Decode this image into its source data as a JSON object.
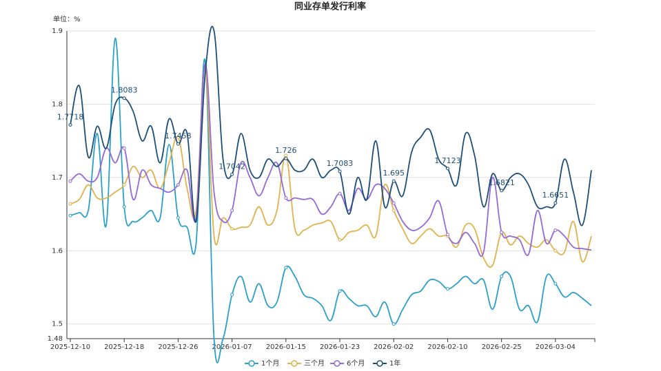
{
  "chart_data": {
    "type": "line",
    "title": "同业存单发行利率",
    "y_axis_label": "单位：%",
    "categories": [
      "2025-12-10",
      null,
      null,
      null,
      null,
      null,
      "2025-12-18",
      null,
      null,
      null,
      null,
      null,
      "2025-12-26",
      null,
      null,
      null,
      null,
      null,
      "2026-01-07",
      null,
      null,
      null,
      null,
      null,
      "2026-01-15",
      null,
      null,
      null,
      null,
      null,
      "2026-01-23",
      null,
      null,
      null,
      null,
      null,
      "2026-02-02",
      null,
      null,
      null,
      null,
      null,
      "2026-02-10",
      null,
      null,
      null,
      null,
      null,
      "2026-02-25",
      null,
      null,
      null,
      null,
      null,
      "2026-03-04",
      null,
      null,
      null,
      null
    ],
    "ylim": [
      1.48,
      1.9
    ],
    "yticks": [
      1.48,
      1.5,
      1.6,
      1.7,
      1.8,
      1.9
    ],
    "grid": true,
    "legend": "bottom",
    "smooth": true,
    "series": [
      {
        "name": "1个月",
        "color": "#2a9fc9",
        "values": [
          1.648,
          1.652,
          1.655,
          1.76,
          1.635,
          1.89,
          1.66,
          1.64,
          1.645,
          1.655,
          1.645,
          1.745,
          1.645,
          1.632,
          1.61,
          1.86,
          1.48,
          1.48,
          1.54,
          1.565,
          1.53,
          1.555,
          1.525,
          1.53,
          1.577,
          1.565,
          1.54,
          1.535,
          1.525,
          1.505,
          1.545,
          1.535,
          1.525,
          1.525,
          1.51,
          1.53,
          1.5,
          1.52,
          1.54,
          1.545,
          1.56,
          1.558,
          1.548,
          1.555,
          1.565,
          1.555,
          1.56,
          1.52,
          1.565,
          1.565,
          1.52,
          1.525,
          1.503,
          1.565,
          1.555,
          1.537,
          1.543,
          1.535,
          1.525
        ]
      },
      {
        "name": "三个月",
        "color": "#e2b14c",
        "values": [
          1.664,
          1.67,
          1.69,
          1.672,
          1.672,
          1.68,
          1.69,
          1.715,
          1.7,
          1.71,
          1.685,
          1.72,
          1.755,
          1.685,
          1.655,
          1.85,
          1.62,
          1.645,
          1.63,
          1.632,
          1.635,
          1.66,
          1.635,
          1.655,
          1.73,
          1.63,
          1.628,
          1.635,
          1.638,
          1.64,
          1.615,
          1.625,
          1.628,
          1.635,
          1.62,
          1.69,
          1.655,
          1.63,
          1.61,
          1.62,
          1.63,
          1.62,
          1.62,
          1.605,
          1.635,
          1.63,
          1.59,
          1.58,
          1.625,
          1.608,
          1.62,
          1.61,
          1.605,
          1.615,
          1.6,
          1.598,
          1.64,
          1.585,
          1.62
        ]
      },
      {
        "name": "6个月",
        "color": "#9469d6",
        "values": [
          1.695,
          1.705,
          1.695,
          1.7,
          1.74,
          1.72,
          1.74,
          1.67,
          1.71,
          1.69,
          1.685,
          1.68,
          1.69,
          1.71,
          1.645,
          1.855,
          1.68,
          1.64,
          1.655,
          1.72,
          1.7,
          1.675,
          1.7,
          1.72,
          1.672,
          1.672,
          1.67,
          1.67,
          1.65,
          1.66,
          1.678,
          1.655,
          1.685,
          1.67,
          1.69,
          1.685,
          1.665,
          1.64,
          1.628,
          1.632,
          1.645,
          1.668,
          1.622,
          1.61,
          1.625,
          1.61,
          1.598,
          1.7,
          1.625,
          1.62,
          1.615,
          1.595,
          1.655,
          1.61,
          1.628,
          1.62,
          1.605,
          1.603,
          1.601
        ]
      },
      {
        "name": "1年",
        "color": "#1c4e78",
        "values": [
          1.7718,
          1.825,
          1.728,
          1.77,
          1.74,
          1.8,
          1.8083,
          1.79,
          1.75,
          1.77,
          1.72,
          1.78,
          1.7458,
          1.76,
          1.64,
          1.84,
          1.9,
          1.725,
          1.7042,
          1.76,
          1.71,
          1.7,
          1.725,
          1.715,
          1.726,
          1.71,
          1.71,
          1.725,
          1.7,
          1.71,
          1.7083,
          1.65,
          1.7,
          1.67,
          1.75,
          1.66,
          1.695,
          1.675,
          1.735,
          1.755,
          1.765,
          1.725,
          1.7123,
          1.69,
          1.76,
          1.73,
          1.66,
          1.705,
          1.6821,
          1.7,
          1.705,
          1.69,
          1.66,
          1.66,
          1.6651,
          1.725,
          1.68,
          1.635,
          1.71
        ],
        "data_labels": true
      }
    ]
  }
}
